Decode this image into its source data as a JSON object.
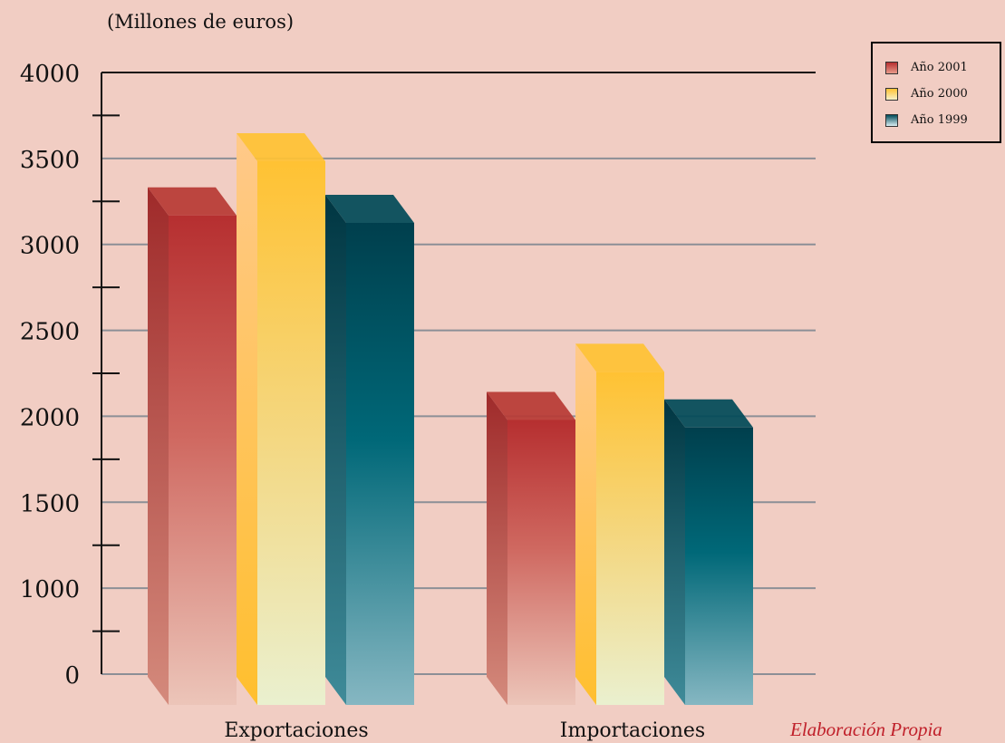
{
  "units_label": "(Millones de euros)",
  "source_note": "Elaboración Propia",
  "chart_data": {
    "type": "bar",
    "categories": [
      "Exportaciones",
      "Importaciones"
    ],
    "series": [
      {
        "name": "Año 2001",
        "values": [
          3050,
          1690
        ],
        "color": "#b73a34"
      },
      {
        "name": "Año 2000",
        "values": [
          3410,
          2010
        ],
        "color": "#ffc233"
      },
      {
        "name": "Año 1999",
        "values": [
          3000,
          1640
        ],
        "color": "#004a58"
      }
    ],
    "yticks": [
      "4000",
      "3500",
      "3000",
      "2500",
      "2000",
      "1500",
      "1000",
      "0"
    ],
    "ylim": [
      0,
      4000
    ],
    "grid": true,
    "legend": "top-right",
    "three_d": true
  }
}
